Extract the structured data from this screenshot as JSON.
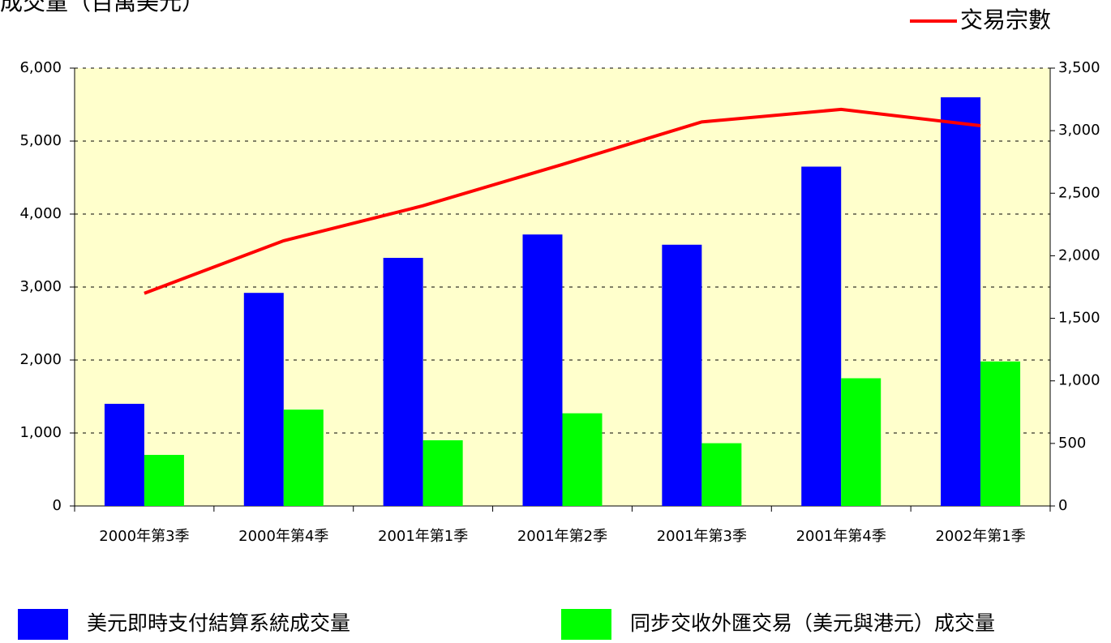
{
  "chart_data": {
    "type": "bar",
    "title": "成交量（百萬美元）",
    "categories": [
      "2000年第3季",
      "2000年第4季",
      "2001年第1季",
      "2001年第2季",
      "2001年第3季",
      "2001年第4季",
      "2002年第1季"
    ],
    "series": [
      {
        "name": "美元即時支付結算系統成交量",
        "color": "#0000ff",
        "type": "bar",
        "values": [
          1400,
          2920,
          3400,
          3720,
          3580,
          4650,
          5600
        ]
      },
      {
        "name": "同步交收外匯交易（美元與港元）成交量",
        "color": "#00ff00",
        "type": "bar",
        "values": [
          700,
          1320,
          900,
          1270,
          860,
          1750,
          1980
        ]
      },
      {
        "name": "交易宗數",
        "color": "#ff0000",
        "type": "line",
        "axis": "y2",
        "values": [
          1700,
          2120,
          2400,
          2730,
          3070,
          3170,
          3040
        ]
      }
    ],
    "ylim": [
      0,
      6000
    ],
    "yticks": [
      {
        "value": 0,
        "label": "0"
      },
      {
        "value": 1000,
        "label": "1,000"
      },
      {
        "value": 2000,
        "label": "2,000"
      },
      {
        "value": 3000,
        "label": "3,000"
      },
      {
        "value": 4000,
        "label": "4,000"
      },
      {
        "value": 5000,
        "label": "5,000"
      },
      {
        "value": 6000,
        "label": "6,000"
      }
    ],
    "y2lim": [
      0,
      3500
    ],
    "y2ticks": [
      0,
      500,
      {
        "value": 1000,
        "label": "1,000"
      },
      {
        "value": 1500,
        "label": "1,500"
      },
      {
        "value": 2000,
        "label": "2,000"
      },
      {
        "value": 2500,
        "label": "2,500"
      },
      {
        "value": 3000,
        "label": "3,000"
      },
      {
        "value": 3500,
        "label": "3,500"
      }
    ],
    "grid": true,
    "background": "#ffffcc"
  }
}
